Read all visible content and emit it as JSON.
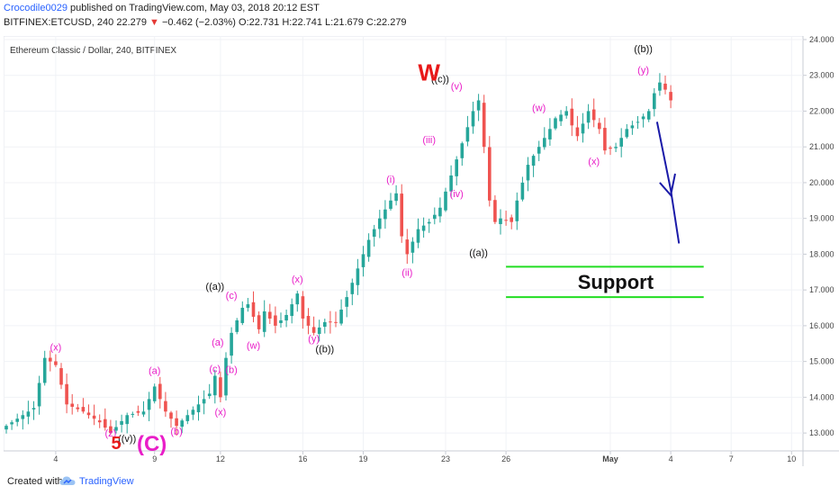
{
  "header": {
    "author": "Crocodile0029",
    "published": "published on TradingView.com, May 03, 2018 20:12 EST",
    "symbol_line": "BITFINEX:ETCUSD, 240",
    "last": "22.279",
    "change": "−0.462 (−2.03%)",
    "ohlc": "O:22.731 H:22.741 L:21.679 C:22.279",
    "down_arrow": "▼"
  },
  "footer": {
    "created": "Created with",
    "brand": "TradingView"
  },
  "chart_data": {
    "type": "candlestick",
    "title": "Ethereum Classic / Dollar, 240, BITFINEX",
    "ylim": [
      12.5,
      24.1
    ],
    "y_ticks": [
      "13.000",
      "14.000",
      "15.000",
      "16.000",
      "17.000",
      "18.000",
      "19.000",
      "20.000",
      "21.000",
      "22.000",
      "23.000",
      "24.000"
    ],
    "x_ticks": [
      {
        "label": "4",
        "bar": 9
      },
      {
        "label": "9",
        "bar": 27
      },
      {
        "label": "12",
        "bar": 39
      },
      {
        "label": "16",
        "bar": 54
      },
      {
        "label": "19",
        "bar": 65
      },
      {
        "label": "23",
        "bar": 80
      },
      {
        "label": "26",
        "bar": 91
      },
      {
        "label": "May",
        "bar": 110
      },
      {
        "label": "4",
        "bar": 121
      },
      {
        "label": "7",
        "bar": 132
      },
      {
        "label": "10",
        "bar": 143
      }
    ],
    "path": [
      [
        0,
        13.2
      ],
      [
        5,
        13.7
      ],
      [
        7,
        15.1
      ],
      [
        9,
        14.9
      ],
      [
        11,
        13.8
      ],
      [
        14,
        13.6
      ],
      [
        17,
        13.3
      ],
      [
        19,
        13.0
      ],
      [
        22,
        13.5
      ],
      [
        25,
        13.6
      ],
      [
        27,
        14.3
      ],
      [
        29,
        13.6
      ],
      [
        31,
        13.2
      ],
      [
        33,
        13.5
      ],
      [
        35,
        13.8
      ],
      [
        37,
        14.1
      ],
      [
        38,
        14.6
      ],
      [
        39,
        14.0
      ],
      [
        40,
        15.1
      ],
      [
        41,
        15.8
      ],
      [
        43,
        16.5
      ],
      [
        44,
        16.6
      ],
      [
        46,
        15.9
      ],
      [
        47,
        16.4
      ],
      [
        49,
        16.0
      ],
      [
        51,
        16.3
      ],
      [
        53,
        16.9
      ],
      [
        54,
        16.2
      ],
      [
        56,
        15.8
      ],
      [
        58,
        16.1
      ],
      [
        60,
        16.1
      ],
      [
        62,
        16.8
      ],
      [
        64,
        17.6
      ],
      [
        66,
        18.4
      ],
      [
        68,
        19.0
      ],
      [
        70,
        19.5
      ],
      [
        71,
        19.7
      ],
      [
        72,
        18.5
      ],
      [
        73,
        18.0
      ],
      [
        75,
        18.7
      ],
      [
        77,
        18.9
      ],
      [
        79,
        19.3
      ],
      [
        81,
        20.2
      ],
      [
        83,
        21.1
      ],
      [
        85,
        22.0
      ],
      [
        86,
        22.3
      ],
      [
        87,
        21.0
      ],
      [
        88,
        19.5
      ],
      [
        89,
        18.9
      ],
      [
        90,
        19.0
      ],
      [
        92,
        18.9
      ],
      [
        93,
        19.5
      ],
      [
        95,
        20.5
      ],
      [
        97,
        21.0
      ],
      [
        99,
        21.5
      ],
      [
        100,
        21.8
      ],
      [
        102,
        22.0
      ],
      [
        103,
        21.6
      ],
      [
        104,
        21.3
      ],
      [
        106,
        22.0
      ],
      [
        108,
        21.5
      ],
      [
        109,
        20.9
      ],
      [
        111,
        21.0
      ],
      [
        113,
        21.5
      ],
      [
        115,
        21.7
      ],
      [
        117,
        22.0
      ],
      [
        118,
        22.5
      ],
      [
        119,
        22.8
      ],
      [
        120,
        22.6
      ],
      [
        121,
        22.3
      ]
    ],
    "waves": [
      {
        "label": "(x)",
        "bar": 9,
        "price": 15.3,
        "color": "#e91ec8"
      },
      {
        "label": "(z)",
        "bar": 19,
        "price": 12.9,
        "color": "#e91ec8"
      },
      {
        "label": "((v))",
        "bar": 22,
        "price": 12.75,
        "color": "#111111"
      },
      {
        "label": "(a)",
        "bar": 27,
        "price": 14.65,
        "color": "#e91ec8"
      },
      {
        "label": "(b)",
        "bar": 31,
        "price": 12.95,
        "color": "#e91ec8"
      },
      {
        "label": "(c)",
        "bar": 38,
        "price": 14.7,
        "color": "#e91ec8"
      },
      {
        "label": "(b)",
        "bar": 41,
        "price": 14.68,
        "color": "#e91ec8"
      },
      {
        "label": "(x)",
        "bar": 39,
        "price": 13.5,
        "color": "#e91ec8"
      },
      {
        "label": "(a)",
        "bar": 38.5,
        "price": 15.45,
        "color": "#e91ec8"
      },
      {
        "label": "((a))",
        "bar": 38,
        "price": 17.0,
        "color": "#111111"
      },
      {
        "label": "(c)",
        "bar": 41,
        "price": 16.75,
        "color": "#e91ec8"
      },
      {
        "label": "(w)",
        "bar": 45,
        "price": 15.35,
        "color": "#e91ec8"
      },
      {
        "label": "(x)",
        "bar": 53,
        "price": 17.2,
        "color": "#e91ec8"
      },
      {
        "label": "(y)",
        "bar": 56,
        "price": 15.55,
        "color": "#e91ec8"
      },
      {
        "label": "((b))",
        "bar": 58,
        "price": 15.25,
        "color": "#111111"
      },
      {
        "label": "(i)",
        "bar": 70,
        "price": 20.0,
        "color": "#e91ec8"
      },
      {
        "label": "(ii)",
        "bar": 73,
        "price": 17.4,
        "color": "#e91ec8"
      },
      {
        "label": "(iii)",
        "bar": 77,
        "price": 21.1,
        "color": "#e91ec8"
      },
      {
        "label": "(iv)",
        "bar": 82,
        "price": 19.6,
        "color": "#e91ec8"
      },
      {
        "label": "(v)",
        "bar": 82,
        "price": 22.6,
        "color": "#e91ec8"
      },
      {
        "label": "((c))",
        "bar": 79,
        "price": 22.8,
        "color": "#111111"
      },
      {
        "label": "((a))",
        "bar": 86,
        "price": 17.95,
        "color": "#111111"
      },
      {
        "label": "(w)",
        "bar": 97,
        "price": 22.0,
        "color": "#e91ec8"
      },
      {
        "label": "(x)",
        "bar": 107,
        "price": 20.5,
        "color": "#e91ec8"
      },
      {
        "label": "(y)",
        "bar": 116,
        "price": 23.05,
        "color": "#e91ec8"
      },
      {
        "label": "((b))",
        "bar": 116,
        "price": 23.65,
        "color": "#111111"
      }
    ],
    "big_labels": [
      {
        "label": "W",
        "bar": 77,
        "price": 22.85,
        "color": "#e81919",
        "size": 26
      },
      {
        "label": "5",
        "bar": 20,
        "price": 12.55,
        "color": "#e81919",
        "size": 20
      },
      {
        "label": "(C)",
        "bar": 26.5,
        "price": 12.5,
        "color": "#e91ec8",
        "size": 24
      }
    ],
    "support": {
      "label": "Support",
      "lines": [
        17.65,
        16.8
      ],
      "bar_start": 91,
      "bar_end": 127,
      "color": "#22dd22"
    },
    "projection": {
      "color": "#1a1aa8",
      "points": [
        [
          118.5,
          21.7
        ],
        [
          121,
          19.8
        ],
        [
          122.5,
          18.3
        ]
      ],
      "head": [
        [
          119,
          20.0
        ],
        [
          121,
          19.65
        ],
        [
          121.8,
          20.25
        ]
      ]
    }
  }
}
